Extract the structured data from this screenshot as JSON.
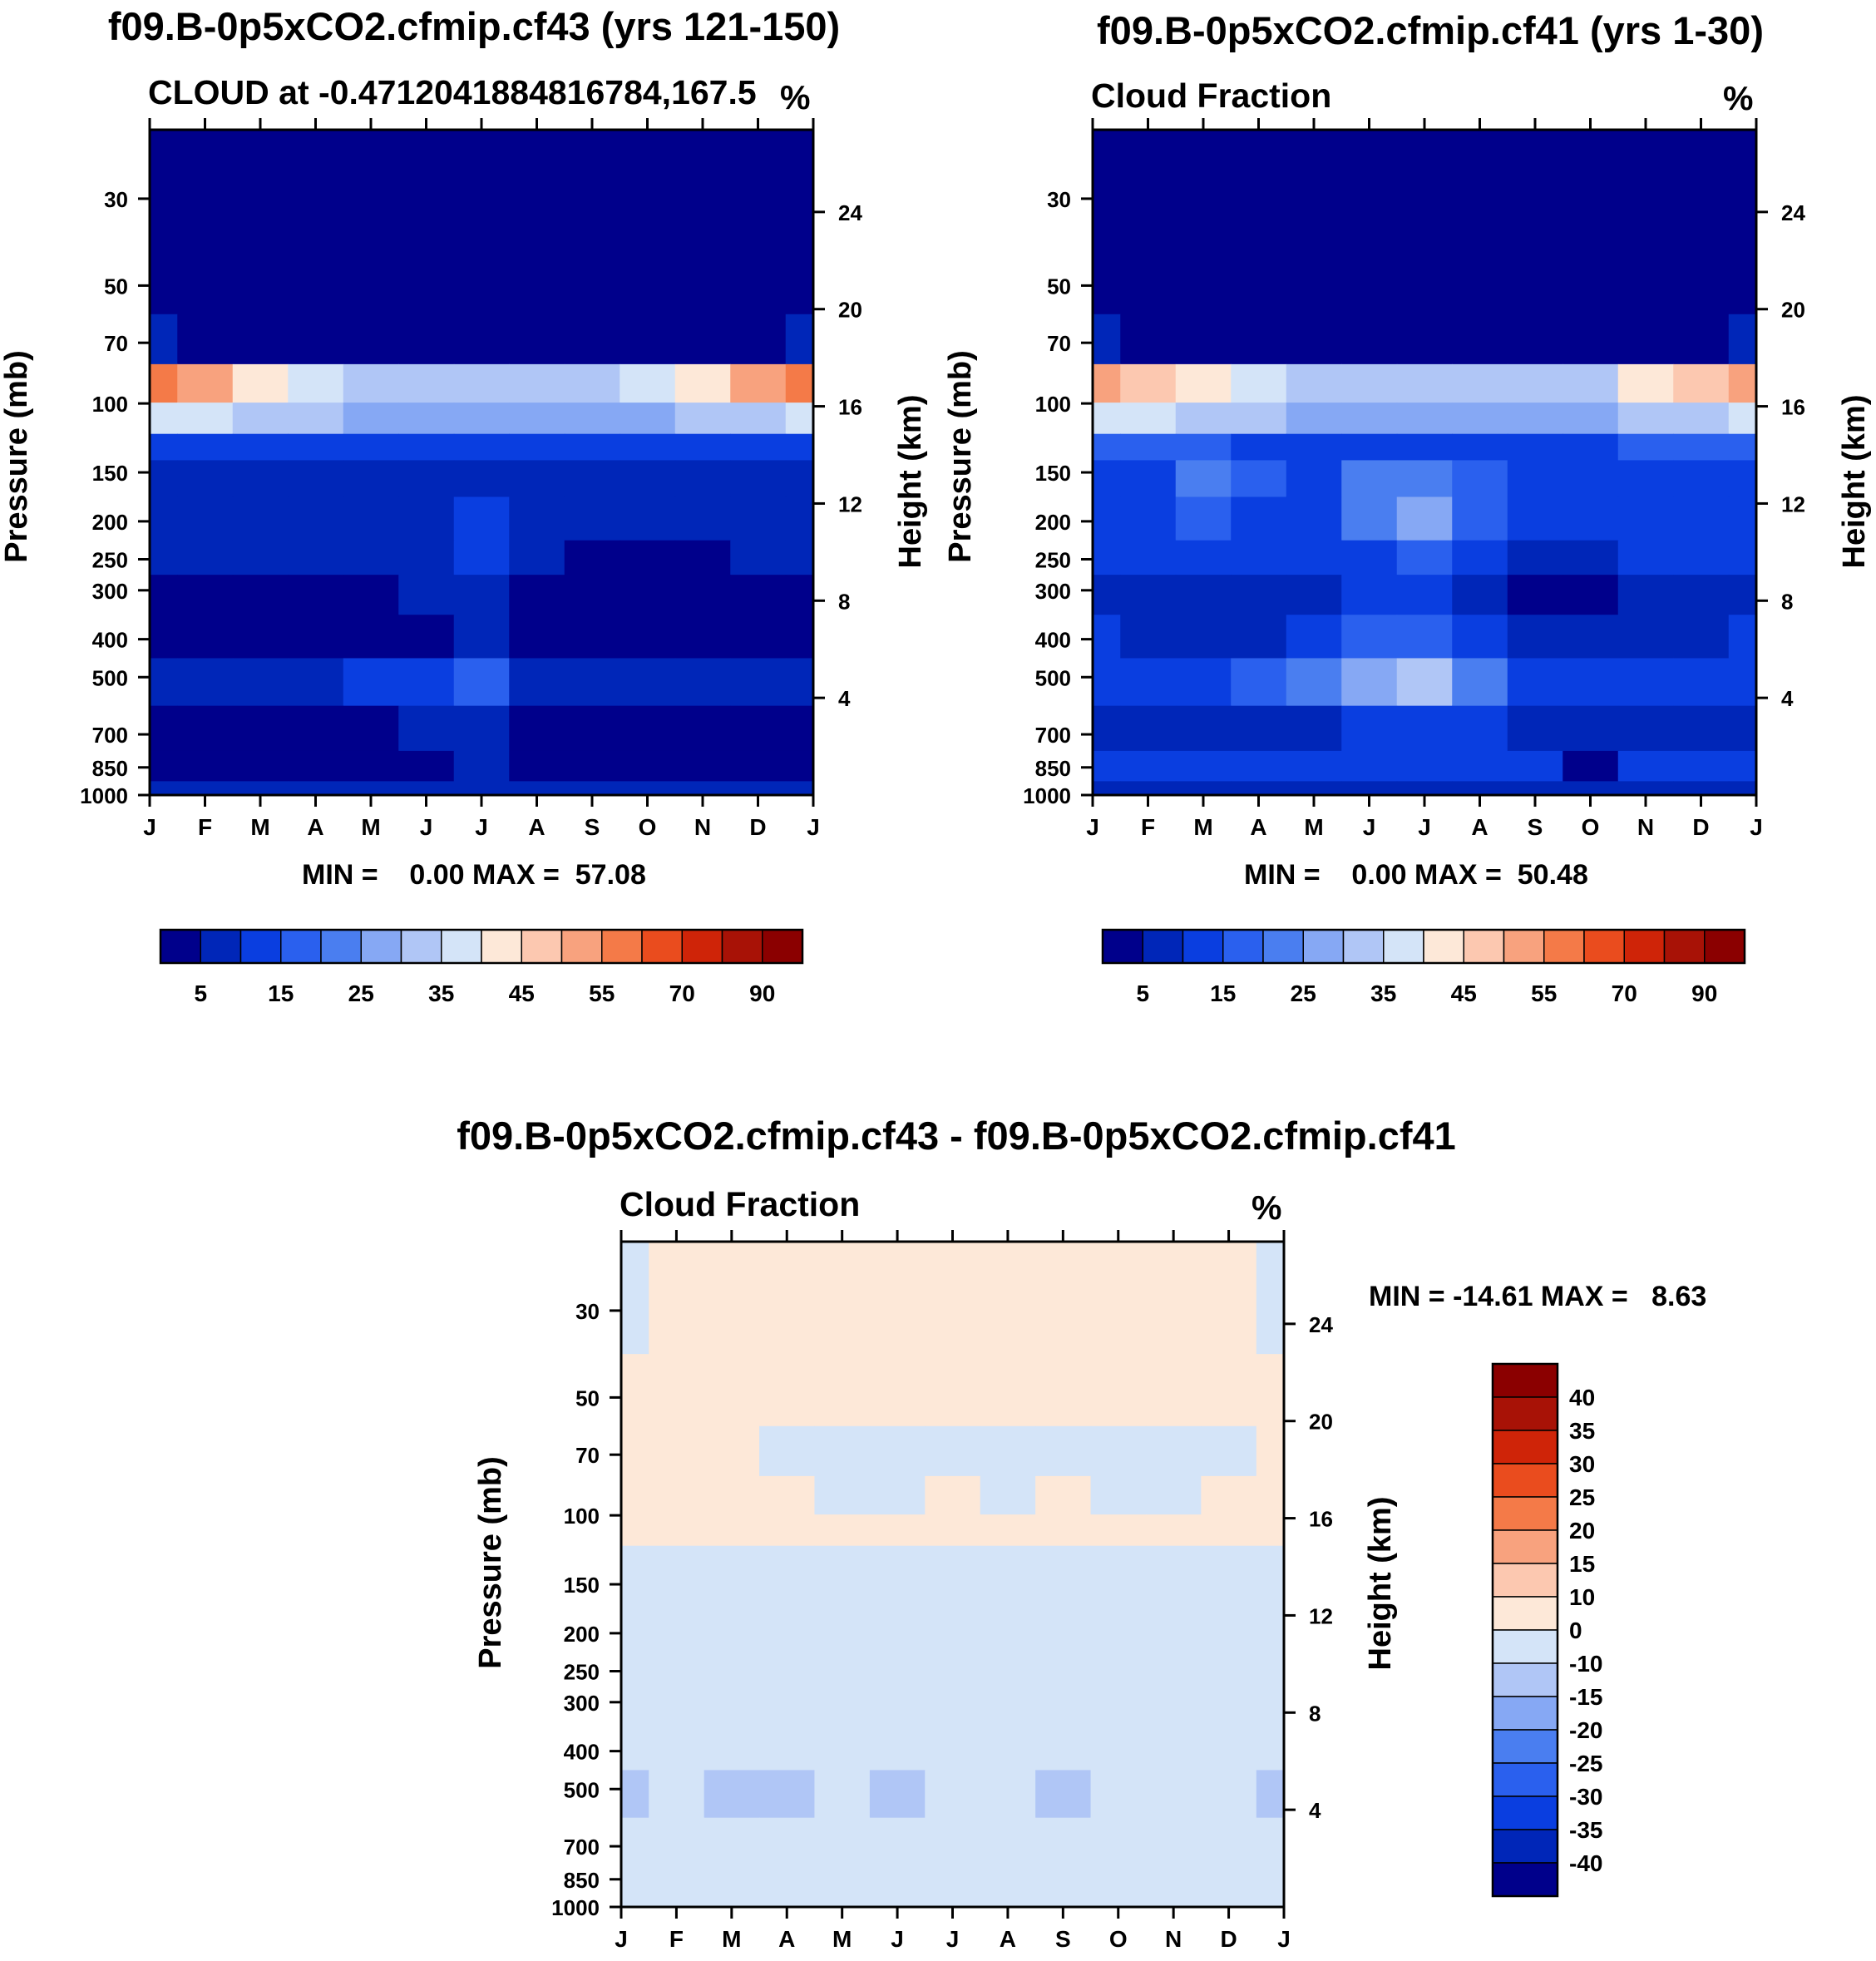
{
  "colors": {
    "scale": [
      "#00008b",
      "#0026b8",
      "#0a3ee0",
      "#2a60ee",
      "#4a7ef0",
      "#86a8f4",
      "#b0c6f6",
      "#d4e4f8",
      "#fde8d8",
      "#fcc8b0",
      "#f8a27e",
      "#f47a48",
      "#ea4c1e",
      "#cf2408",
      "#a81206",
      "#8b0000"
    ],
    "diff": [
      "#00008b",
      "#0026b8",
      "#0a3ee0",
      "#2a60ee",
      "#4a7ef0",
      "#86a8f4",
      "#b0c6f6",
      "#d4e4f8",
      "#fde8d8",
      "#fcc8b0",
      "#f8a27e",
      "#f47a48",
      "#ea4c1e",
      "#cf2408",
      "#a81206",
      "#8b0000"
    ]
  },
  "chart_data": [
    {
      "type": "heatmap",
      "title": "f09.B-0p5xCO2.cfmip.cf43 (yrs 121-150)",
      "subtitle": "CLOUD at -0.4712041884816784,167.5",
      "units": "%",
      "ylabel": "Pressure (mb)",
      "y2label": "Height (km)",
      "x_ticks": [
        "J",
        "F",
        "M",
        "A",
        "M",
        "J",
        "J",
        "A",
        "S",
        "O",
        "N",
        "D",
        "J"
      ],
      "y_ticks": [
        "30",
        "50",
        "70",
        "100",
        "150",
        "200",
        "250",
        "300",
        "400",
        "500",
        "700",
        "850",
        "1000"
      ],
      "y2_ticks": [
        "24",
        "20",
        "16",
        "12",
        "8",
        "4"
      ],
      "min_max": "MIN =    0.00 MAX =  57.08",
      "colorbar_labels": [
        "5",
        "15",
        "25",
        "35",
        "45",
        "55",
        "70",
        "90"
      ],
      "levels": [
        30,
        50,
        70,
        90,
        110,
        130,
        150,
        200,
        250,
        300,
        400,
        500,
        700,
        850,
        1000
      ],
      "values": [
        [
          0,
          0,
          0,
          0,
          0,
          0,
          0,
          0,
          0,
          0,
          0,
          0,
          0
        ],
        [
          1,
          1,
          0,
          0,
          0,
          0,
          0,
          0,
          0,
          0,
          0,
          1,
          1
        ],
        [
          5,
          4,
          3,
          2,
          2,
          2,
          2,
          2,
          2,
          2,
          3,
          4,
          5
        ],
        [
          57,
          50,
          44,
          38,
          34,
          33,
          32,
          33,
          34,
          36,
          42,
          50,
          57
        ],
        [
          38,
          36,
          33,
          30,
          28,
          27,
          27,
          27,
          28,
          29,
          31,
          34,
          38
        ],
        [
          14,
          14,
          13,
          13,
          12,
          12,
          12,
          12,
          12,
          12,
          13,
          14,
          14
        ],
        [
          8,
          8,
          8,
          8,
          7,
          7,
          8,
          7,
          7,
          7,
          8,
          8,
          8
        ],
        [
          6,
          6,
          6,
          6,
          7,
          8,
          14,
          8,
          6,
          5,
          5,
          5,
          6
        ],
        [
          5,
          5,
          5,
          5,
          6,
          8,
          12,
          7,
          4,
          4,
          4,
          5,
          5
        ],
        [
          3,
          2,
          2,
          2,
          2,
          5,
          8,
          4,
          1,
          1,
          1,
          2,
          3
        ],
        [
          2,
          1,
          1,
          1,
          2,
          4,
          6,
          3,
          1,
          1,
          1,
          2,
          2
        ],
        [
          7,
          6,
          6,
          8,
          10,
          13,
          17,
          9,
          6,
          5,
          6,
          6,
          8
        ],
        [
          3,
          2,
          2,
          2,
          3,
          5,
          8,
          3,
          1,
          1,
          1,
          2,
          3
        ],
        [
          2,
          1,
          1,
          2,
          3,
          4,
          5,
          3,
          1,
          1,
          1,
          2,
          2
        ],
        [
          6,
          6,
          6,
          6,
          6,
          6,
          6,
          6,
          6,
          6,
          6,
          6,
          6
        ]
      ]
    },
    {
      "type": "heatmap",
      "title": "f09.B-0p5xCO2.cfmip.cf41 (yrs 1-30)",
      "subtitle": "Cloud Fraction",
      "units": "%",
      "ylabel": "Pressure (mb)",
      "y2label": "Height (km)",
      "x_ticks": [
        "J",
        "F",
        "M",
        "A",
        "M",
        "J",
        "J",
        "A",
        "S",
        "O",
        "N",
        "D",
        "J"
      ],
      "y_ticks": [
        "30",
        "50",
        "70",
        "100",
        "150",
        "200",
        "250",
        "300",
        "400",
        "500",
        "700",
        "850",
        "1000"
      ],
      "y2_ticks": [
        "24",
        "20",
        "16",
        "12",
        "8",
        "4"
      ],
      "min_max": "MIN =    0.00 MAX =  50.48",
      "colorbar_labels": [
        "5",
        "15",
        "25",
        "35",
        "45",
        "55",
        "70",
        "90"
      ],
      "levels": [
        30,
        50,
        70,
        90,
        110,
        130,
        150,
        200,
        250,
        300,
        400,
        500,
        700,
        850,
        1000
      ],
      "values": [
        [
          0,
          0,
          0,
          0,
          0,
          0,
          0,
          0,
          0,
          0,
          0,
          0,
          0
        ],
        [
          1,
          1,
          0,
          0,
          0,
          0,
          0,
          0,
          0,
          0,
          0,
          1,
          1
        ],
        [
          5,
          4,
          3,
          2,
          2,
          2,
          2,
          2,
          2,
          2,
          3,
          4,
          5
        ],
        [
          50,
          48,
          43,
          36,
          33,
          32,
          31,
          32,
          33,
          34,
          40,
          46,
          50
        ],
        [
          36,
          35,
          32,
          30,
          28,
          27,
          27,
          27,
          28,
          29,
          31,
          33,
          36
        ],
        [
          16,
          16,
          15,
          14,
          14,
          14,
          14,
          14,
          14,
          14,
          15,
          15,
          16
        ],
        [
          12,
          13,
          20,
          15,
          12,
          20,
          24,
          18,
          12,
          11,
          13,
          14,
          12
        ],
        [
          12,
          14,
          18,
          14,
          12,
          20,
          26,
          18,
          12,
          10,
          14,
          13,
          12
        ],
        [
          11,
          12,
          11,
          10,
          11,
          14,
          16,
          12,
          8,
          6,
          11,
          12,
          11
        ],
        [
          8,
          6,
          5,
          6,
          8,
          10,
          12,
          8,
          4,
          2,
          6,
          8,
          8
        ],
        [
          10,
          8,
          8,
          9,
          12,
          15,
          17,
          12,
          8,
          7,
          9,
          9,
          10
        ],
        [
          14,
          12,
          13,
          17,
          22,
          28,
          32,
          24,
          14,
          11,
          12,
          13,
          14
        ],
        [
          8,
          6,
          6,
          7,
          9,
          12,
          14,
          10,
          6,
          5,
          6,
          7,
          8
        ],
        [
          10,
          10,
          10,
          11,
          12,
          13,
          13,
          12,
          10,
          3,
          10,
          10,
          10
        ],
        [
          6,
          6,
          6,
          6,
          6,
          6,
          6,
          6,
          6,
          6,
          6,
          6,
          6
        ]
      ]
    },
    {
      "type": "heatmap",
      "title": "f09.B-0p5xCO2.cfmip.cf43 - f09.B-0p5xCO2.cfmip.cf41",
      "subtitle": "Cloud Fraction",
      "units": "%",
      "ylabel": "Pressure (mb)",
      "y2label": "Height (km)",
      "x_ticks": [
        "J",
        "F",
        "M",
        "A",
        "M",
        "J",
        "J",
        "A",
        "S",
        "O",
        "N",
        "D",
        "J"
      ],
      "y_ticks": [
        "30",
        "50",
        "70",
        "100",
        "150",
        "200",
        "250",
        "300",
        "400",
        "500",
        "700",
        "850",
        "1000"
      ],
      "y2_ticks": [
        "24",
        "20",
        "16",
        "12",
        "8",
        "4"
      ],
      "min_max": "MIN = -14.61 MAX =   8.63",
      "colorbar_labels": [
        "40",
        "35",
        "30",
        "25",
        "20",
        "15",
        "10",
        "0",
        "-10",
        "-15",
        "-20",
        "-25",
        "-30",
        "-35",
        "-40"
      ],
      "levels": [
        30,
        50,
        70,
        90,
        110,
        130,
        150,
        200,
        250,
        300,
        400,
        500,
        700,
        850,
        1000
      ],
      "values": [
        [
          -3,
          2,
          2,
          2,
          2,
          2,
          2,
          2,
          2,
          2,
          2,
          2,
          -3
        ],
        [
          2,
          2,
          2,
          2,
          2,
          2,
          2,
          2,
          2,
          2,
          2,
          2,
          2
        ],
        [
          2,
          2,
          2,
          -3,
          -3,
          -3,
          -3,
          -3,
          -3,
          -3,
          -3,
          -3,
          2
        ],
        [
          2,
          2,
          2,
          2,
          -3,
          -3,
          2,
          -3,
          2,
          -3,
          -3,
          2,
          2
        ],
        [
          2,
          2,
          2,
          2,
          2,
          2,
          2,
          2,
          2,
          2,
          2,
          2,
          2
        ],
        [
          -3,
          -3,
          -3,
          -3,
          -3,
          -3,
          -3,
          -3,
          -3,
          -3,
          -3,
          -3,
          -3
        ],
        [
          -3,
          -3,
          -3,
          -3,
          -3,
          -3,
          -3,
          -3,
          -3,
          -3,
          -3,
          -3,
          -3
        ],
        [
          -3,
          -3,
          -3,
          -3,
          -3,
          -3,
          -3,
          -3,
          -3,
          -3,
          -3,
          -3,
          -3
        ],
        [
          -3,
          -3,
          -3,
          -3,
          -3,
          -3,
          -3,
          -3,
          -3,
          -3,
          -3,
          -3,
          -3
        ],
        [
          -3,
          -3,
          -3,
          -3,
          -3,
          -3,
          -3,
          -3,
          -3,
          -3,
          -3,
          -3,
          -3
        ],
        [
          -3,
          -3,
          -3,
          -3,
          -3,
          -3,
          -3,
          -3,
          -3,
          -3,
          -3,
          -3,
          -3
        ],
        [
          -12,
          -3,
          -12,
          -12,
          -3,
          -12,
          -3,
          -3,
          -12,
          -3,
          -3,
          -3,
          -12
        ],
        [
          -3,
          -3,
          -3,
          -3,
          -3,
          -3,
          -3,
          -3,
          -3,
          -3,
          -3,
          -3,
          -3
        ],
        [
          -3,
          -3,
          -3,
          -3,
          -3,
          -3,
          -3,
          -3,
          -3,
          -3,
          -3,
          -3,
          -3
        ],
        [
          -3,
          -3,
          -3,
          -3,
          -3,
          -3,
          -3,
          -3,
          -3,
          -3,
          -3,
          -3,
          -3
        ]
      ]
    }
  ]
}
